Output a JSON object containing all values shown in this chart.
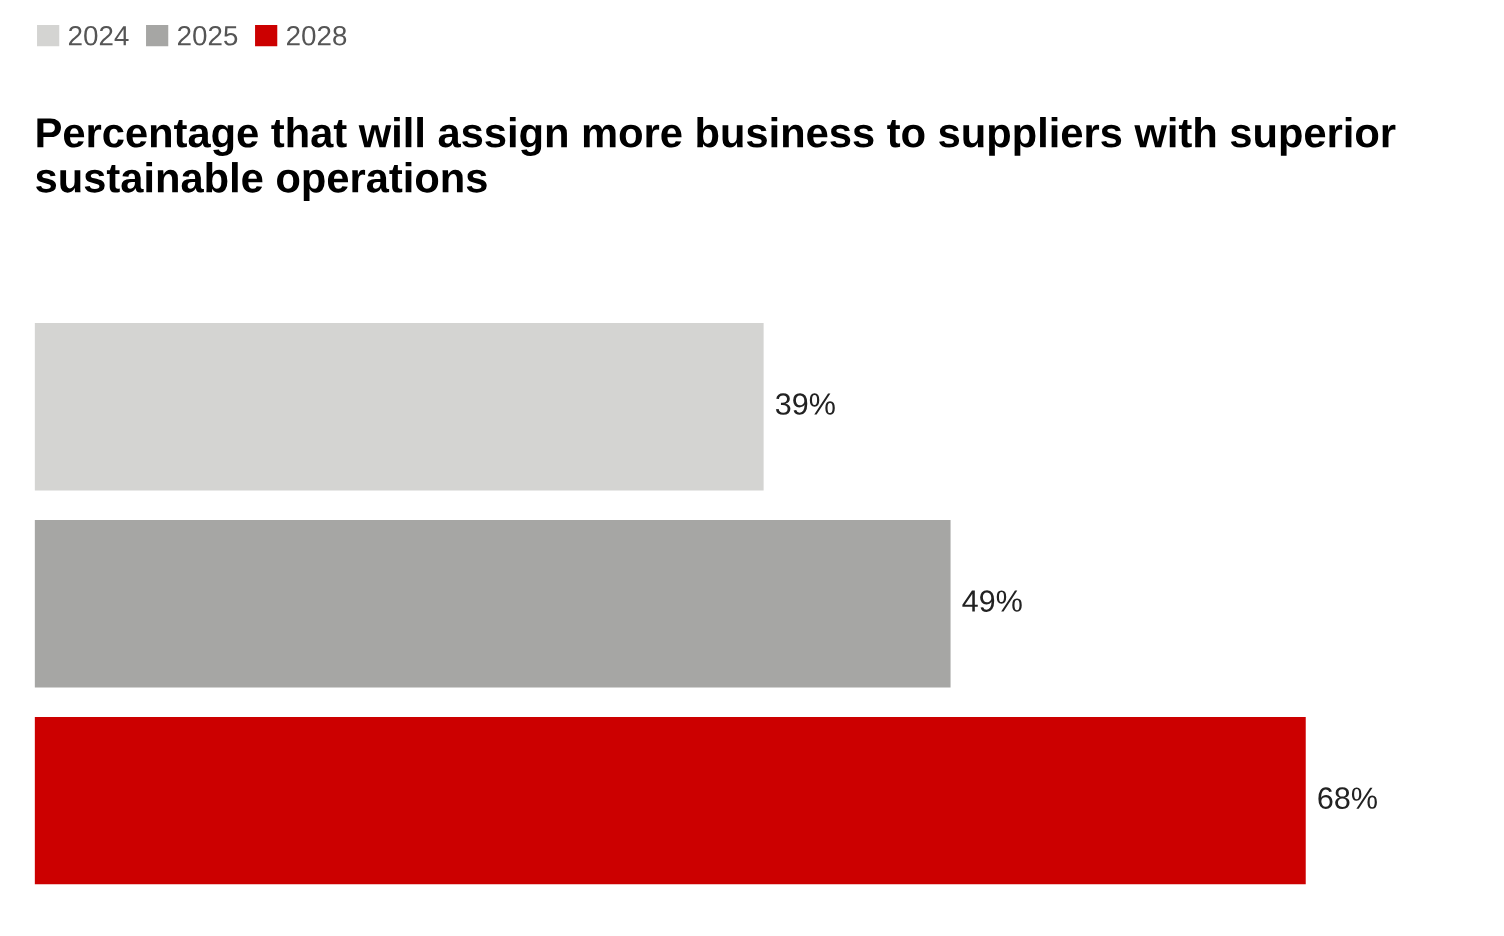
{
  "chart_data": {
    "type": "bar",
    "orientation": "horizontal",
    "title": "Percentage that will assign more business to suppliers with superior sustainable operations",
    "categories": [
      null
    ],
    "series": [
      {
        "name": "2024",
        "color": "#d4d4d2",
        "values": [
          39
        ],
        "value_labels": [
          "39%"
        ]
      },
      {
        "name": "2025",
        "color": "#a6a6a4",
        "values": [
          49
        ],
        "value_labels": [
          "49%"
        ]
      },
      {
        "name": "2028",
        "color": "#cc0000",
        "values": [
          68
        ],
        "value_labels": [
          "68%"
        ]
      }
    ],
    "legend": "top left"
  }
}
